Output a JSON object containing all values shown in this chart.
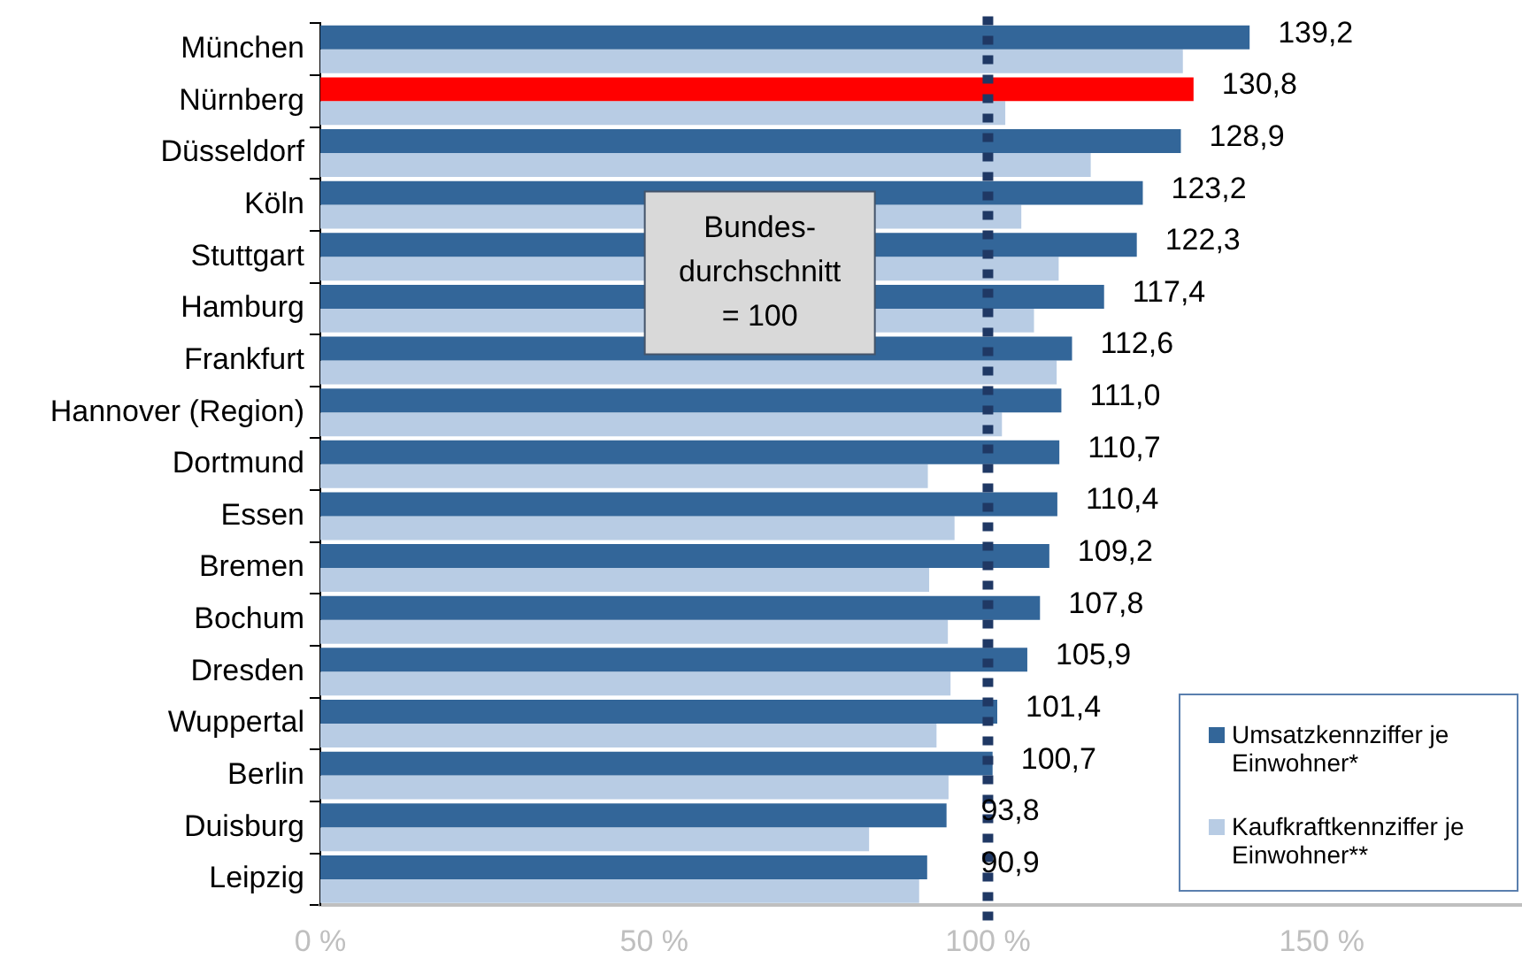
{
  "chart_data": {
    "type": "bar",
    "orientation": "horizontal",
    "categories": [
      "München",
      "Nürnberg",
      "Düsseldorf",
      "Köln",
      "Stuttgart",
      "Hamburg",
      "Frankfurt",
      "Hannover (Region)",
      "Dortmund",
      "Essen",
      "Bremen",
      "Bochum",
      "Dresden",
      "Wuppertal",
      "Berlin",
      "Duisburg",
      "Leipzig"
    ],
    "series": [
      {
        "name": "Umsatzkennziffer je Einwohner*",
        "color": "#336699",
        "colors": [
          "#336699",
          "#ff0000",
          "#336699",
          "#336699",
          "#336699",
          "#336699",
          "#336699",
          "#336699",
          "#336699",
          "#336699",
          "#336699",
          "#336699",
          "#336699",
          "#336699",
          "#336699",
          "#336699",
          "#336699"
        ],
        "values": [
          139.2,
          130.8,
          128.9,
          123.2,
          122.3,
          117.4,
          112.6,
          111.0,
          110.7,
          110.4,
          109.2,
          107.8,
          105.9,
          101.4,
          100.7,
          93.8,
          90.9
        ],
        "value_labels": [
          "139,2",
          "130,8",
          "128,9",
          "123,2",
          "122,3",
          "117,4",
          "112,6",
          "111,0",
          "110,7",
          "110,4",
          "109,2",
          "107,8",
          "105,9",
          "101,4",
          "100,7",
          "93,8",
          "90,9"
        ]
      },
      {
        "name": "Kaufkraftkennziffer je Einwohner**",
        "color": "#b8cce4",
        "values": [
          129.2,
          102.6,
          115.4,
          105.0,
          110.6,
          106.9,
          110.3,
          102.1,
          91.0,
          95.0,
          91.2,
          94.0,
          94.4,
          92.3,
          94.1,
          82.2,
          89.7
        ]
      }
    ],
    "xlim": [
      0,
      180
    ],
    "xticks": [
      {
        "value": 0,
        "label": "0 %"
      },
      {
        "value": 50,
        "label": "50 %"
      },
      {
        "value": 100,
        "label": "100 %"
      },
      {
        "value": 150,
        "label": "150 %"
      }
    ],
    "ref_lines": [
      {
        "axis": "x",
        "value": 100,
        "color": "#1f3864",
        "line_style": "dotted"
      }
    ],
    "annotations": [
      "Bundes-\ndurchschnitt\n= 100"
    ],
    "grid": false,
    "legend": "bottom right"
  }
}
